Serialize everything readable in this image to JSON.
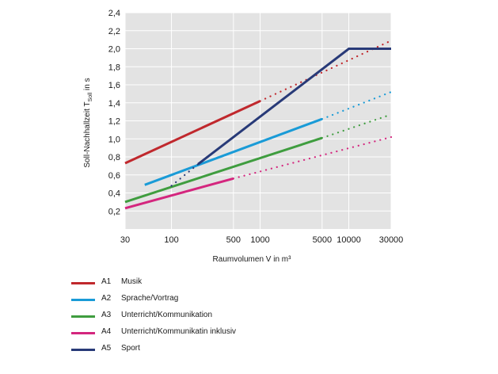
{
  "chart_data": {
    "type": "line",
    "title": "",
    "ylabel": "Soll-Nachhallzeit T",
    "ylabel_sub": "Soll",
    "ylabel_unit": " in s",
    "xlabel": "Raumvolumen V in m³",
    "x_scale": "log",
    "xlim": [
      30,
      30000
    ],
    "ylim": [
      0.0,
      2.4
    ],
    "x_ticks": [
      30,
      100,
      500,
      1000,
      5000,
      10000,
      30000
    ],
    "x_tick_labels": [
      "30",
      "100",
      "500",
      "1000",
      "5000",
      "10000",
      "30000"
    ],
    "y_ticks": [
      0.2,
      0.4,
      0.6,
      0.8,
      1.0,
      1.2,
      1.4,
      1.6,
      1.8,
      2.0,
      2.2,
      2.4
    ],
    "y_tick_labels": [
      "0,2",
      "0,4",
      "0,6",
      "0,8",
      "1,0",
      "1,2",
      "1,4",
      "1,6",
      "1,8",
      "2,0",
      "2,2",
      "2,4"
    ],
    "grid": true,
    "legend_position": "bottom-left",
    "series": [
      {
        "code": "A1",
        "name": "Musik",
        "color": "#c0282d",
        "solid": [
          [
            30,
            0.73
          ],
          [
            1000,
            1.42
          ]
        ],
        "dotted": [
          [
            1000,
            1.42
          ],
          [
            30000,
            2.09
          ]
        ]
      },
      {
        "code": "A2",
        "name": "Sprache/Vortrag",
        "color": "#1a9bd7",
        "solid": [
          [
            50,
            0.49
          ],
          [
            5000,
            1.22
          ]
        ],
        "dotted": [
          [
            5000,
            1.22
          ],
          [
            30000,
            1.52
          ]
        ]
      },
      {
        "code": "A3",
        "name": "Unterricht/Kommunikation",
        "color": "#3f9d3f",
        "solid": [
          [
            30,
            0.3
          ],
          [
            5000,
            1.01
          ]
        ],
        "dotted": [
          [
            5000,
            1.01
          ],
          [
            30000,
            1.27
          ]
        ]
      },
      {
        "code": "A4",
        "name": "Unterricht/Kommunikatin inklusiv",
        "color": "#d4267e",
        "solid": [
          [
            30,
            0.23
          ],
          [
            500,
            0.56
          ]
        ],
        "dotted": [
          [
            500,
            0.56
          ],
          [
            30000,
            1.02
          ]
        ]
      },
      {
        "code": "A5",
        "name": "Sport",
        "color": "#283a78",
        "solid": [
          [
            200,
            0.72
          ],
          [
            10000,
            2.0
          ],
          [
            30000,
            2.0
          ]
        ],
        "dotted": [
          [
            100,
            0.48
          ],
          [
            200,
            0.72
          ]
        ]
      }
    ]
  }
}
